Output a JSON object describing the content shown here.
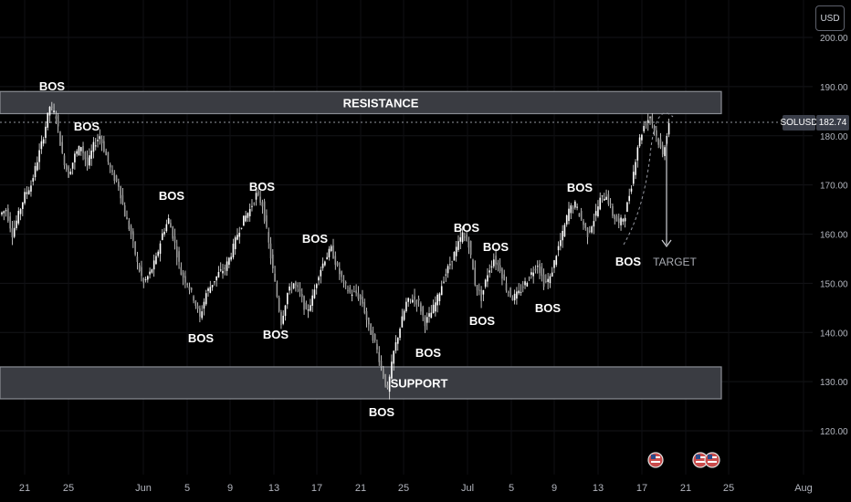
{
  "toolbar": {
    "currency_label": "USD"
  },
  "price_tag": {
    "symbol": "SOLUSD",
    "last_price": "182.74"
  },
  "chart_data": {
    "type": "candlestick",
    "title": "",
    "currency": "USD",
    "ylim": [
      116,
      204
    ],
    "y_ticks": [
      {
        "value": 120,
        "label": "120.00"
      },
      {
        "value": 130,
        "label": "130.00"
      },
      {
        "value": 140,
        "label": "140.00"
      },
      {
        "value": 150,
        "label": "150.00"
      },
      {
        "value": 160,
        "label": "160.00"
      },
      {
        "value": 170,
        "label": "170.00"
      },
      {
        "value": 180,
        "label": "180.00"
      },
      {
        "value": 190,
        "label": "190.00"
      },
      {
        "value": 200,
        "label": "200.00"
      }
    ],
    "x_ticks": [
      "21",
      "25",
      "Jun",
      "5",
      "9",
      "13",
      "17",
      "21",
      "25",
      "Jul",
      "5",
      "9",
      "13",
      "17",
      "21",
      "25",
      "Aug"
    ],
    "zones": [
      {
        "label": "RESISTANCE",
        "low": 184.5,
        "high": 189.0,
        "color": "#3a3c42"
      },
      {
        "label": "SUPPORT",
        "low": 126.5,
        "high": 133.0,
        "color": "#3a3c42"
      }
    ],
    "last_price": 182.74,
    "close_series": [
      165,
      160,
      164,
      168,
      170,
      175,
      180,
      186,
      184,
      176,
      172,
      176,
      178,
      174,
      178,
      180,
      176,
      172,
      170,
      164,
      160,
      154,
      150,
      152,
      155,
      160,
      163,
      158,
      152,
      150,
      147,
      143,
      148,
      150,
      152,
      153,
      156,
      160,
      163,
      165,
      168,
      166,
      158,
      150,
      142,
      148,
      150,
      148,
      144,
      147,
      152,
      155,
      157,
      153,
      150,
      148,
      148,
      146,
      141,
      138,
      133,
      128,
      136,
      141,
      146,
      147,
      146,
      142,
      144,
      147,
      151,
      154,
      157,
      160,
      158,
      150,
      147,
      152,
      155,
      153,
      149,
      147,
      148,
      150,
      152,
      154,
      150,
      151,
      156,
      160,
      165,
      166,
      163,
      160,
      163,
      167,
      168,
      164,
      162,
      164,
      170,
      178,
      182,
      184,
      180,
      176,
      182.74
    ],
    "annotations": [
      {
        "label": "BOS",
        "price": 189.0
      },
      {
        "label": "BOS",
        "price": 179.0
      },
      {
        "label": "BOS",
        "price": 163.5
      },
      {
        "label": "BOS",
        "price": 142.5
      },
      {
        "label": "BOS",
        "price": 168.0
      },
      {
        "label": "BOS",
        "price": 143.5
      },
      {
        "label": "BOS",
        "price": 157.5
      },
      {
        "label": "BOS",
        "price": 127.0
      },
      {
        "label": "BOS",
        "price": 137.5
      },
      {
        "label": "BOS",
        "price": 160.5
      },
      {
        "label": "BOS",
        "price": 146.0
      },
      {
        "label": "BOS",
        "price": 156.0
      },
      {
        "label": "BOS",
        "price": 147.5
      },
      {
        "label": "BOS",
        "price": 168.5
      },
      {
        "label": "BOS",
        "price": 157.0
      },
      {
        "label": "TARGET",
        "price": 158.0
      }
    ],
    "event_icons": [
      "us-flag-icon",
      "us-flag-icon",
      "us-flag-icon"
    ]
  }
}
